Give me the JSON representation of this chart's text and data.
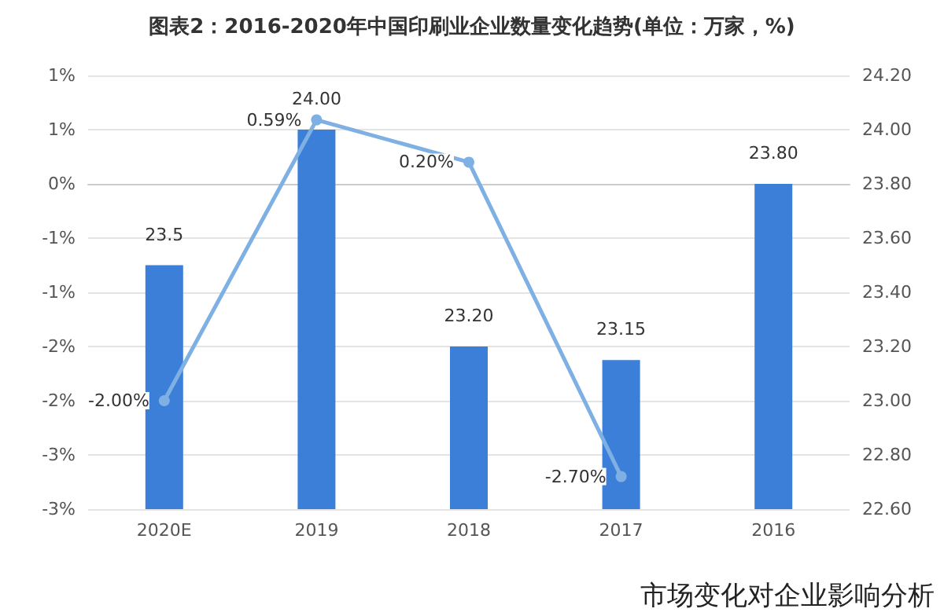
{
  "chart_data": {
    "type": "bar",
    "title": "图表2：2016-2020年中国印刷业企业数量变化趋势(单位：万家，%)",
    "categories": [
      "2020E",
      "2019",
      "2018",
      "2017",
      "2016"
    ],
    "series": [
      {
        "axis": "y2",
        "color": "#3b7fd9",
        "values": [
          23.5,
          24.0,
          23.2,
          23.15,
          23.8
        ],
        "value_labels": [
          "23.5",
          "24.00",
          "23.20",
          "23.15",
          "23.80"
        ]
      },
      {
        "type": "line",
        "color": "#7fb0e3",
        "values": [
          -2.0,
          0.59,
          0.2,
          -2.7,
          null
        ],
        "value_labels": [
          "-2.00%",
          "0.59%",
          "0.20%",
          "-2.70%",
          null
        ]
      }
    ],
    "ylim": [
      -3,
      1
    ],
    "yticks": [
      {
        "value": 1,
        "label": "1%"
      },
      {
        "value": 0.5,
        "label": "1%"
      },
      {
        "value": 0,
        "label": "0%"
      },
      {
        "value": -0.5,
        "label": "-1%"
      },
      {
        "value": -1,
        "label": "-1%"
      },
      {
        "value": -1.5,
        "label": "-2%"
      },
      {
        "value": -2,
        "label": "-2%"
      },
      {
        "value": -2.5,
        "label": "-3%"
      },
      {
        "value": -3,
        "label": "-3%"
      }
    ],
    "y2lim": [
      22.6,
      24.2
    ],
    "y2ticks": [
      {
        "value": 22.6,
        "label": "22.60"
      },
      {
        "value": 22.8,
        "label": "22.80"
      },
      {
        "value": 23,
        "label": "23.00"
      },
      {
        "value": 23.2,
        "label": "23.20"
      },
      {
        "value": 23.4,
        "label": "23.40"
      },
      {
        "value": 23.6,
        "label": "23.60"
      },
      {
        "value": 23.8,
        "label": "23.80"
      },
      {
        "value": 24,
        "label": "24.00"
      },
      {
        "value": 24.2,
        "label": "24.20"
      }
    ],
    "grid": "y",
    "marker": "circle",
    "annotations": [
      "市场变化对企业影响分析"
    ]
  }
}
